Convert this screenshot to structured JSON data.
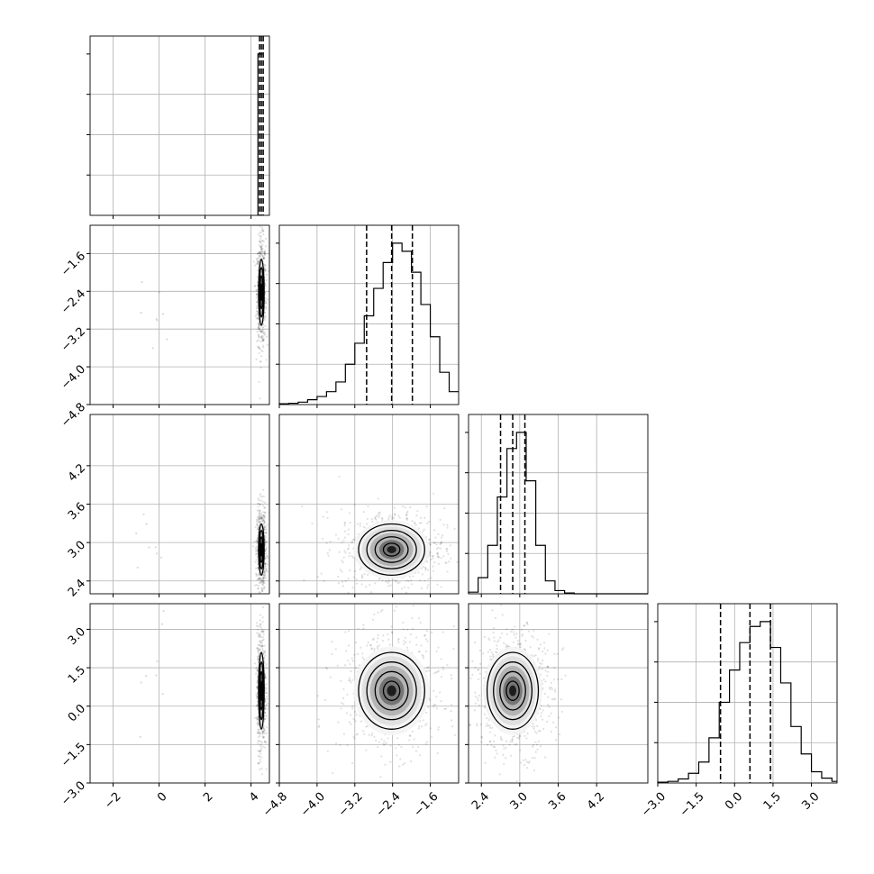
{
  "chart_data": {
    "type": "corner",
    "parameters": [
      "",
      "",
      "",
      ""
    ],
    "grid": true,
    "ranges": [
      [
        -3.0,
        4.8
      ],
      [
        -4.8,
        -1.0
      ],
      [
        2.2,
        5.0
      ],
      [
        -3.0,
        4.0
      ]
    ],
    "quantiles": [
      [
        4.37,
        4.45,
        4.53
      ],
      [
        -2.95,
        -2.42,
        -1.98
      ],
      [
        2.7,
        2.89,
        3.08
      ],
      [
        -0.55,
        0.6,
        1.4
      ]
    ],
    "centers": [
      4.45,
      -2.42,
      2.89,
      0.6
    ],
    "sigmas": [
      0.06,
      0.35,
      0.2,
      0.75
    ],
    "tick_labels": {
      "x": [
        [
          "−2",
          "0",
          "2",
          "4"
        ],
        [
          "−4.8",
          "−4.0",
          "−3.2",
          "−2.4",
          "−1.6"
        ],
        [
          "2.4",
          "3.0",
          "3.6",
          "4.2"
        ],
        [
          "−3.0",
          "−1.5",
          "0.0",
          "1.5",
          "3.0"
        ]
      ],
      "y": [
        [],
        [
          "−4.8",
          "−4.0",
          "−3.2",
          "−2.4",
          "−1.6"
        ],
        [
          "2.4",
          "3.0",
          "3.6",
          "4.2"
        ],
        [
          "−3.0",
          "−1.5",
          "0.0",
          "1.5",
          "3.0"
        ]
      ]
    },
    "histograms": [
      {
        "param": 0,
        "bin_edges": [
          4.3,
          4.5
        ],
        "counts": [
          1.0
        ]
      },
      {
        "param": 1,
        "bin_edges": [
          -4.8,
          -4.6,
          -4.4,
          -4.2,
          -4.0,
          -3.8,
          -3.6,
          -3.4,
          -3.2,
          -3.0,
          -2.8,
          -2.6,
          -2.4,
          -2.2,
          -2.0,
          -1.8,
          -1.6,
          -1.4,
          -1.2,
          -1.0
        ],
        "counts": [
          0.005,
          0.008,
          0.015,
          0.03,
          0.05,
          0.08,
          0.14,
          0.25,
          0.38,
          0.55,
          0.72,
          0.88,
          1.0,
          0.95,
          0.82,
          0.62,
          0.42,
          0.2,
          0.08
        ]
      },
      {
        "param": 2,
        "bin_edges": [
          2.2,
          2.35,
          2.5,
          2.65,
          2.8,
          2.95,
          3.1,
          3.25,
          3.4,
          3.55,
          3.7,
          3.85,
          4.0,
          4.15,
          4.3,
          4.45,
          4.6,
          4.75,
          4.9,
          5.0
        ],
        "counts": [
          0.01,
          0.1,
          0.3,
          0.6,
          0.9,
          1.0,
          0.7,
          0.3,
          0.08,
          0.02,
          0.005,
          0.0,
          0.0,
          0.0,
          0.0,
          0.0,
          0.0,
          0.0,
          0.0
        ]
      },
      {
        "param": 3,
        "bin_edges": [
          -3.0,
          -2.6,
          -2.2,
          -1.8,
          -1.4,
          -1.0,
          -0.6,
          -0.2,
          0.2,
          0.6,
          1.0,
          1.4,
          1.8,
          2.2,
          2.6,
          3.0,
          3.4,
          3.8,
          4.0
        ],
        "counts": [
          0.005,
          0.01,
          0.025,
          0.06,
          0.13,
          0.28,
          0.5,
          0.7,
          0.87,
          0.97,
          1.0,
          0.84,
          0.62,
          0.35,
          0.18,
          0.07,
          0.03,
          0.01
        ]
      }
    ],
    "contour_levels": [
      0.5,
      1.0,
      1.5,
      2.0
    ]
  }
}
